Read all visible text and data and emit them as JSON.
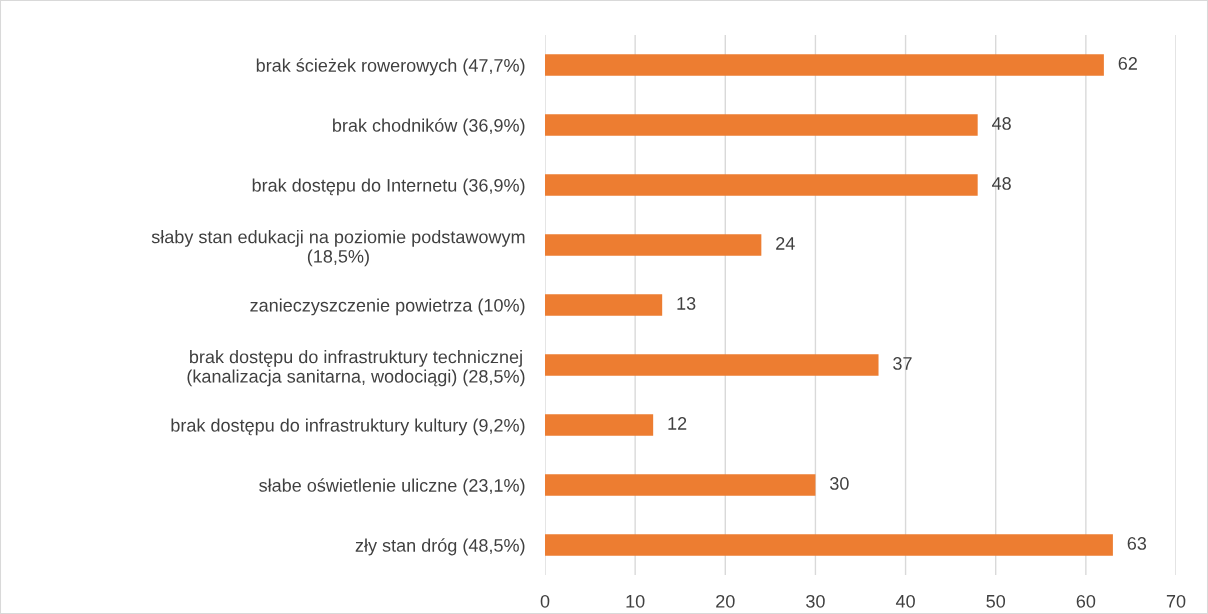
{
  "chart_data": {
    "type": "bar",
    "orientation": "horizontal",
    "categories": [
      "brak ścieżek rowerowych (47,7%)",
      "brak chodników (36,9%)",
      "brak dostępu do Internetu (36,9%)",
      "słaby stan edukacji na poziomie podstawowym\n(18,5%)",
      "zanieczyszczenie powietrza (10%)",
      "brak dostępu do infrastruktury technicznej\n(kanalizacja sanitarna, wodociągi) (28,5%)",
      "brak dostępu do infrastruktury kultury (9,2%)",
      "słabe oświetlenie uliczne (23,1%)",
      "zły stan dróg (48,5%)"
    ],
    "values": [
      62,
      48,
      48,
      24,
      13,
      37,
      12,
      30,
      63
    ],
    "color": "#ed7d31",
    "data_labels": true,
    "xlim": [
      0,
      70
    ],
    "xticks": [
      0,
      10,
      20,
      30,
      40,
      50,
      60,
      70
    ],
    "grid": "x"
  }
}
